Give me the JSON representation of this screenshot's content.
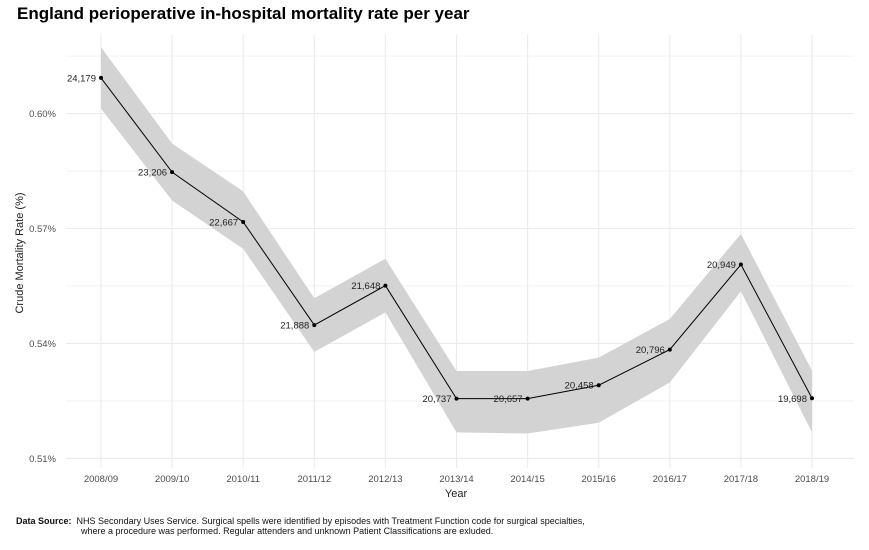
{
  "chart_data": {
    "type": "line",
    "title": "England perioperative in-hospital mortality rate per year",
    "xlabel": "Year",
    "ylabel": "Crude Mortality Rate (%)",
    "categories": [
      "2008/09",
      "2009/10",
      "2010/11",
      "2011/12",
      "2012/13",
      "2013/14",
      "2014/15",
      "2015/16",
      "2016/17",
      "2017/18",
      "2018/19"
    ],
    "values": [
      0.6093,
      0.5847,
      0.5717,
      0.5448,
      0.5551,
      0.5256,
      0.5256,
      0.5291,
      0.5384,
      0.5606,
      0.5257
    ],
    "ci_lower": [
      0.6013,
      0.5773,
      0.5647,
      0.5378,
      0.5481,
      0.5168,
      0.5165,
      0.5193,
      0.5298,
      0.5536,
      0.5168
    ],
    "ci_upper": [
      0.6173,
      0.5922,
      0.5797,
      0.5518,
      0.5621,
      0.5328,
      0.5328,
      0.5363,
      0.5464,
      0.5686,
      0.5329
    ],
    "data_labels": [
      "24,179",
      "23,206",
      "22,667",
      "21,888",
      "21,648",
      "20,737",
      "20,657",
      "20,458",
      "20,796",
      "20,949",
      "19,698"
    ],
    "y_ticks": [
      0.51,
      0.54,
      0.57,
      0.6
    ],
    "y_tick_labels": [
      "0.51%",
      "0.54%",
      "0.57%",
      "0.60%"
    ],
    "ylim": [
      0.5075,
      0.6205
    ],
    "grid": true,
    "legend": "none",
    "colors": {
      "line": "#000000",
      "band": "#d3d3d3",
      "grid": "#ebebeb"
    }
  },
  "caption": {
    "label": "Data Source:",
    "line1": "NHS Secondary Uses Service.  Surgical spells were identified by episodes with Treatment Function code for surgical specialties,",
    "line2": "where a procedure was performed. Regular attenders and unknown Patient Classifications are exluded."
  }
}
